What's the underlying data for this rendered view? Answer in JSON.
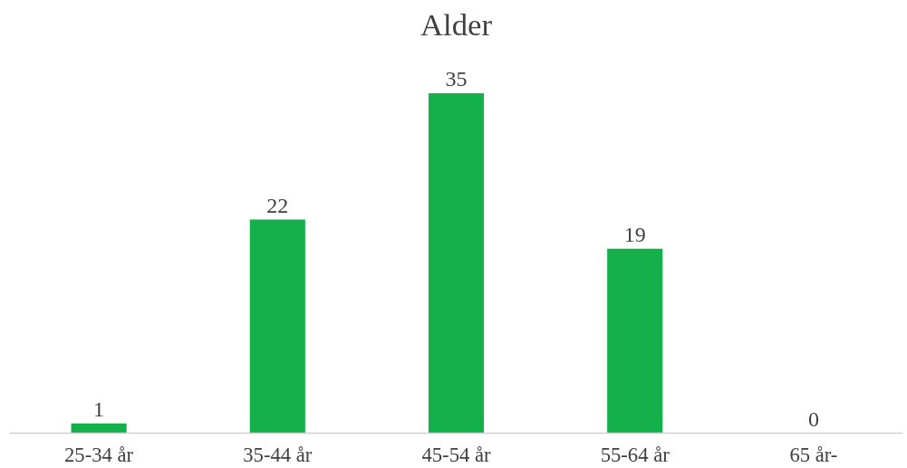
{
  "chart_data": {
    "type": "bar",
    "title": "Alder",
    "categories": [
      "25-34 år",
      "35-44 år",
      "45-54 år",
      "55-64 år",
      "65 år-"
    ],
    "values": [
      1,
      22,
      35,
      19,
      0
    ],
    "color": "#14b04c",
    "data_labels": true,
    "grid": false
  }
}
